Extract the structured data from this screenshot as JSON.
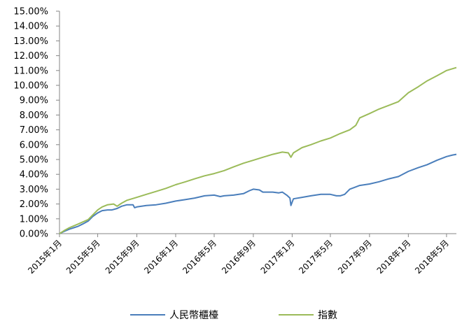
{
  "chart_data": {
    "type": "line",
    "title": "",
    "xlabel": "",
    "ylabel": "",
    "ylim": [
      0,
      15
    ],
    "y_tick_labels": [
      "0.00%",
      "1.00%",
      "2.00%",
      "3.00%",
      "4.00%",
      "5.00%",
      "6.00%",
      "7.00%",
      "8.00%",
      "9.00%",
      "10.00%",
      "11.00%",
      "12.00%",
      "13.00%",
      "14.00%",
      "15.00%"
    ],
    "x_tick_labels": [
      "2015年1月",
      "2015年5月",
      "2015年9月",
      "2016年1月",
      "2016年5月",
      "2016年9月",
      "2017年1月",
      "2017年5月",
      "2017年9月",
      "2018年1月",
      "2018年5月"
    ],
    "x_tick_dates": [
      "2015-01",
      "2015-05",
      "2015-09",
      "2016-01",
      "2016-05",
      "2016-09",
      "2017-01",
      "2017-05",
      "2017-09",
      "2018-01",
      "2018-05"
    ],
    "grid": false,
    "legend_position": "bottom",
    "series": [
      {
        "name": "人民幣櫃檯",
        "color": "#4a7ebb",
        "points": [
          [
            "2015-01-01",
            0.0
          ],
          [
            "2015-01-15",
            0.15
          ],
          [
            "2015-02-01",
            0.3
          ],
          [
            "2015-02-15",
            0.4
          ],
          [
            "2015-03-01",
            0.5
          ],
          [
            "2015-03-15",
            0.65
          ],
          [
            "2015-04-01",
            0.85
          ],
          [
            "2015-04-15",
            1.15
          ],
          [
            "2015-05-01",
            1.4
          ],
          [
            "2015-05-15",
            1.55
          ],
          [
            "2015-06-01",
            1.6
          ],
          [
            "2015-06-15",
            1.6
          ],
          [
            "2015-07-01",
            1.7
          ],
          [
            "2015-07-15",
            1.85
          ],
          [
            "2015-08-01",
            1.95
          ],
          [
            "2015-08-20",
            1.95
          ],
          [
            "2015-08-25",
            1.75
          ],
          [
            "2015-09-01",
            1.8
          ],
          [
            "2015-10-01",
            1.9
          ],
          [
            "2015-11-01",
            1.95
          ],
          [
            "2015-12-01",
            2.05
          ],
          [
            "2016-01-01",
            2.2
          ],
          [
            "2016-02-01",
            2.3
          ],
          [
            "2016-03-01",
            2.4
          ],
          [
            "2016-04-01",
            2.55
          ],
          [
            "2016-05-01",
            2.6
          ],
          [
            "2016-05-20",
            2.5
          ],
          [
            "2016-06-01",
            2.55
          ],
          [
            "2016-07-01",
            2.6
          ],
          [
            "2016-08-01",
            2.7
          ],
          [
            "2016-08-20",
            2.9
          ],
          [
            "2016-09-01",
            3.0
          ],
          [
            "2016-09-20",
            2.95
          ],
          [
            "2016-10-01",
            2.8
          ],
          [
            "2016-11-01",
            2.8
          ],
          [
            "2016-11-20",
            2.75
          ],
          [
            "2016-12-01",
            2.8
          ],
          [
            "2016-12-15",
            2.6
          ],
          [
            "2016-12-25",
            2.4
          ],
          [
            "2016-12-28",
            1.9
          ],
          [
            "2017-01-05",
            2.35
          ],
          [
            "2017-02-01",
            2.45
          ],
          [
            "2017-03-01",
            2.55
          ],
          [
            "2017-04-01",
            2.65
          ],
          [
            "2017-05-01",
            2.65
          ],
          [
            "2017-05-20",
            2.55
          ],
          [
            "2017-06-01",
            2.55
          ],
          [
            "2017-06-15",
            2.65
          ],
          [
            "2017-07-01",
            3.0
          ],
          [
            "2017-08-01",
            3.25
          ],
          [
            "2017-09-01",
            3.35
          ],
          [
            "2017-10-01",
            3.5
          ],
          [
            "2017-11-01",
            3.7
          ],
          [
            "2017-12-01",
            3.85
          ],
          [
            "2018-01-01",
            4.2
          ],
          [
            "2018-02-01",
            4.45
          ],
          [
            "2018-03-01",
            4.65
          ],
          [
            "2018-04-01",
            4.95
          ],
          [
            "2018-05-01",
            5.2
          ],
          [
            "2018-05-20",
            5.3
          ],
          [
            "2018-06-01",
            5.35
          ]
        ]
      },
      {
        "name": "指數",
        "color": "#9bbb59",
        "points": [
          [
            "2015-01-01",
            0.0
          ],
          [
            "2015-01-15",
            0.2
          ],
          [
            "2015-02-01",
            0.4
          ],
          [
            "2015-03-01",
            0.65
          ],
          [
            "2015-04-01",
            0.95
          ],
          [
            "2015-04-15",
            1.25
          ],
          [
            "2015-05-01",
            1.6
          ],
          [
            "2015-05-15",
            1.8
          ],
          [
            "2015-06-01",
            1.95
          ],
          [
            "2015-06-20",
            2.0
          ],
          [
            "2015-07-01",
            1.85
          ],
          [
            "2015-07-15",
            2.05
          ],
          [
            "2015-08-01",
            2.25
          ],
          [
            "2015-09-01",
            2.45
          ],
          [
            "2015-10-01",
            2.65
          ],
          [
            "2015-11-01",
            2.85
          ],
          [
            "2015-12-01",
            3.05
          ],
          [
            "2016-01-01",
            3.3
          ],
          [
            "2016-02-01",
            3.5
          ],
          [
            "2016-03-01",
            3.7
          ],
          [
            "2016-04-01",
            3.9
          ],
          [
            "2016-05-01",
            4.05
          ],
          [
            "2016-06-01",
            4.25
          ],
          [
            "2016-07-01",
            4.5
          ],
          [
            "2016-08-01",
            4.75
          ],
          [
            "2016-09-01",
            4.95
          ],
          [
            "2016-10-01",
            5.15
          ],
          [
            "2016-11-01",
            5.35
          ],
          [
            "2016-12-01",
            5.5
          ],
          [
            "2016-12-20",
            5.45
          ],
          [
            "2016-12-28",
            5.15
          ],
          [
            "2017-01-05",
            5.45
          ],
          [
            "2017-02-01",
            5.8
          ],
          [
            "2017-03-01",
            6.0
          ],
          [
            "2017-04-01",
            6.25
          ],
          [
            "2017-05-01",
            6.45
          ],
          [
            "2017-06-01",
            6.75
          ],
          [
            "2017-07-01",
            7.0
          ],
          [
            "2017-07-20",
            7.3
          ],
          [
            "2017-08-01",
            7.8
          ],
          [
            "2017-09-01",
            8.1
          ],
          [
            "2017-10-01",
            8.4
          ],
          [
            "2017-11-01",
            8.65
          ],
          [
            "2017-12-01",
            8.9
          ],
          [
            "2018-01-01",
            9.5
          ],
          [
            "2018-02-01",
            9.9
          ],
          [
            "2018-03-01",
            10.3
          ],
          [
            "2018-04-01",
            10.65
          ],
          [
            "2018-05-01",
            11.0
          ],
          [
            "2018-06-01",
            11.2
          ]
        ]
      }
    ]
  }
}
